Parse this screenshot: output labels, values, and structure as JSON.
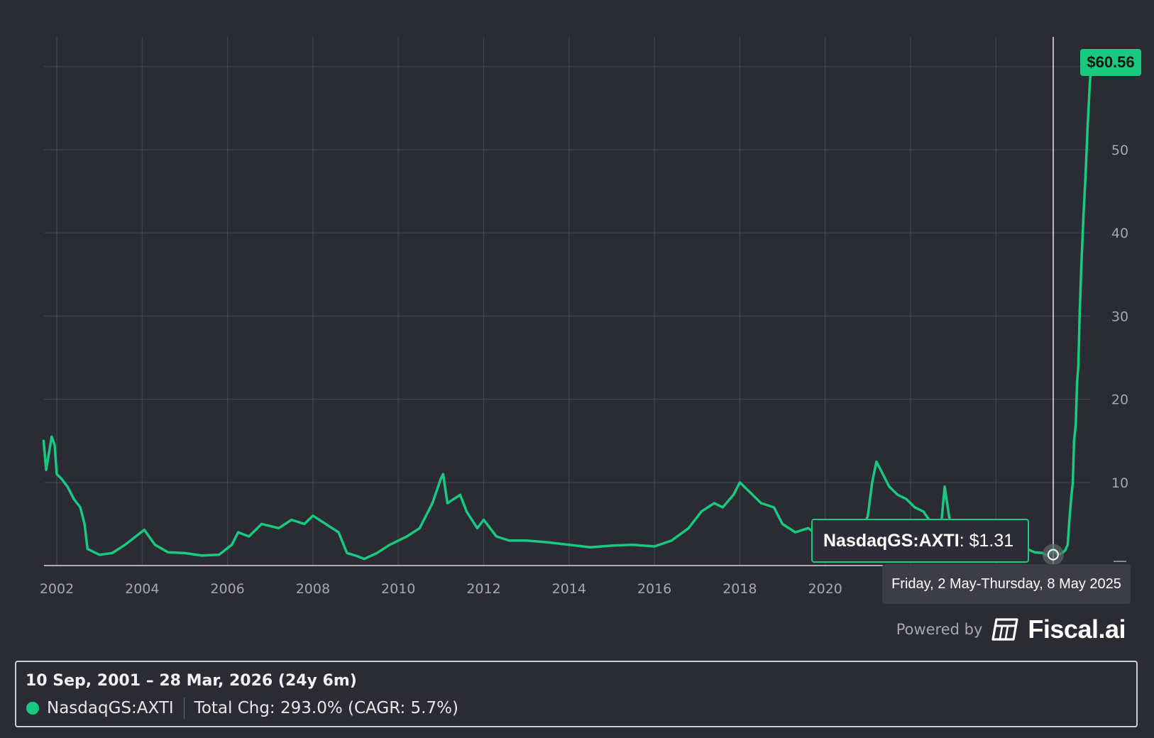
{
  "chart_data": {
    "type": "line",
    "ticker": "NasdaqGS:AXTI",
    "x_ticks": [
      "2002",
      "2004",
      "2006",
      "2008",
      "2010",
      "2012",
      "2014",
      "2016",
      "2018",
      "2020"
    ],
    "y_ticks": [
      "10",
      "20",
      "30",
      "40",
      "50"
    ],
    "ylim": [
      0,
      64
    ],
    "last_price": "$60.56",
    "series": [
      {
        "name": "NasdaqGS:AXTI",
        "color": "#18c97f",
        "x": [
          2001.69,
          2001.75,
          2001.8,
          2001.88,
          2001.95,
          2002.0,
          2002.1,
          2002.25,
          2002.4,
          2002.55,
          2002.65,
          2002.72,
          2002.8,
          2003.0,
          2003.3,
          2003.6,
          2003.85,
          2004.05,
          2004.3,
          2004.6,
          2005.0,
          2005.4,
          2005.8,
          2006.1,
          2006.25,
          2006.5,
          2006.8,
          2007.2,
          2007.5,
          2007.8,
          2008.0,
          2008.3,
          2008.6,
          2008.8,
          2009.0,
          2009.2,
          2009.5,
          2009.8,
          2010.2,
          2010.5,
          2010.8,
          2011.0,
          2011.05,
          2011.15,
          2011.3,
          2011.45,
          2011.6,
          2011.85,
          2012.0,
          2012.3,
          2012.6,
          2013.0,
          2013.5,
          2014.0,
          2014.5,
          2015.0,
          2015.5,
          2016.0,
          2016.4,
          2016.8,
          2017.1,
          2017.4,
          2017.6,
          2017.85,
          2018.0,
          2018.2,
          2018.5,
          2018.8,
          2019.0,
          2019.3,
          2019.6,
          2019.9,
          2020.2,
          2020.5,
          2020.75,
          2020.9,
          2021.0,
          2021.1,
          2021.2,
          2021.35,
          2021.5,
          2021.7,
          2021.9,
          2022.1,
          2022.3,
          2022.5,
          2022.7,
          2022.8,
          2022.9,
          2023.0,
          2023.2,
          2023.5,
          2023.8,
          2024.0,
          2024.3,
          2024.6,
          2024.9,
          2025.1,
          2025.2,
          2025.35,
          2025.45,
          2025.55,
          2025.62,
          2025.68,
          2025.72,
          2025.76,
          2025.8,
          2025.83,
          2025.87,
          2025.9,
          2025.93,
          2025.96,
          2026.0,
          2026.05,
          2026.1,
          2026.15,
          2026.2,
          2026.24
        ],
        "y": [
          15.0,
          11.5,
          13.0,
          15.5,
          14.5,
          11.0,
          10.5,
          9.5,
          8.0,
          7.0,
          5.0,
          2.0,
          1.8,
          1.3,
          1.5,
          2.5,
          3.5,
          4.3,
          2.5,
          1.6,
          1.5,
          1.2,
          1.3,
          2.5,
          4.0,
          3.5,
          5.0,
          4.5,
          5.5,
          5.0,
          6.0,
          5.0,
          4.0,
          1.5,
          1.2,
          0.8,
          1.5,
          2.5,
          3.5,
          4.5,
          7.5,
          10.5,
          11.0,
          7.5,
          8.0,
          8.5,
          6.5,
          4.5,
          5.5,
          3.5,
          3.0,
          3.0,
          2.8,
          2.5,
          2.2,
          2.4,
          2.5,
          2.3,
          3.0,
          4.5,
          6.5,
          7.5,
          7.0,
          8.5,
          10.0,
          9.0,
          7.5,
          7.0,
          5.0,
          4.0,
          4.5,
          3.5,
          3.0,
          2.5,
          3.5,
          4.5,
          6.0,
          10.0,
          12.5,
          11.0,
          9.5,
          8.5,
          8.0,
          7.0,
          6.5,
          5.0,
          4.0,
          9.5,
          6.0,
          3.5,
          2.8,
          5.0,
          2.8,
          2.5,
          2.0,
          2.3,
          1.6,
          1.5,
          1.2,
          2.0,
          1.3,
          1.5,
          1.8,
          2.5,
          5.5,
          8.0,
          10.0,
          15.0,
          17.0,
          22.0,
          24.0,
          30.0,
          36.0,
          42.0,
          47.0,
          53.0,
          58.0,
          60.56
        ]
      }
    ],
    "hover": {
      "ticker": "NasdaqGS:AXTI",
      "price": ": $1.31",
      "date_range": "Friday, 2 May-Thursday, 8 May 2025",
      "x": 2025.34,
      "y": 1.31
    }
  },
  "footer": {
    "powered_by": "Powered by",
    "brand": "Fiscal.ai"
  },
  "summary": {
    "range": "10 Sep, 2001 – 28 Mar, 2026 (24y 6m)",
    "ticker": "NasdaqGS:AXTI",
    "change": "Total Chg: 293.0% (CAGR: 5.7%)"
  }
}
